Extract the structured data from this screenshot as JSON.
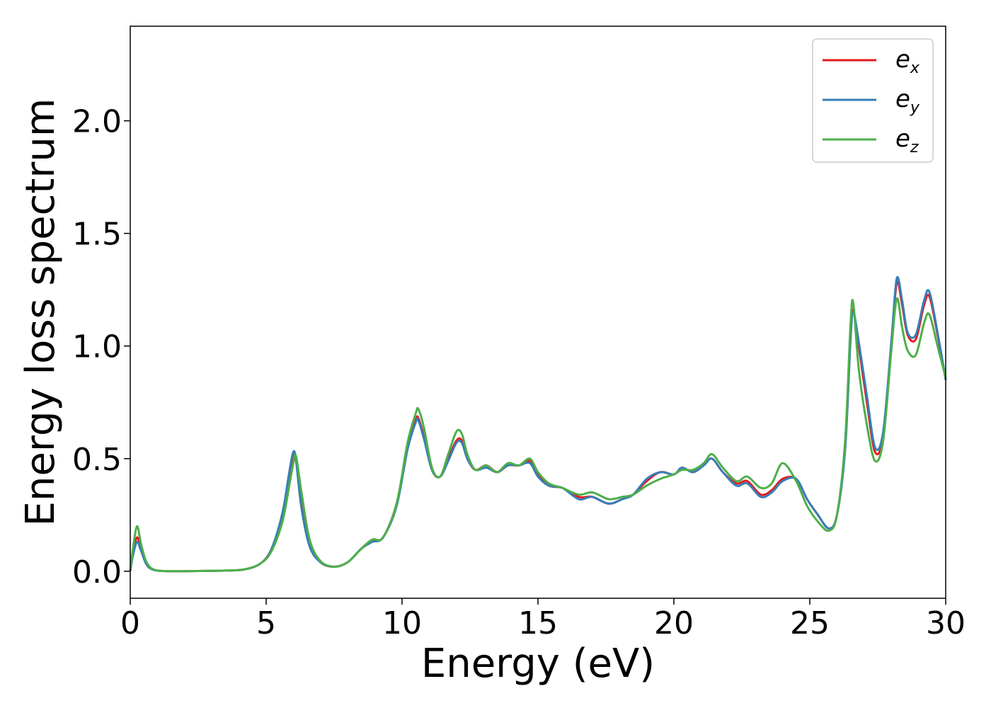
{
  "chart_data": {
    "type": "line",
    "title": "",
    "xlabel": "Energy (eV)",
    "ylabel": "Energy loss spectrum",
    "xlim": [
      0,
      30
    ],
    "ylim": [
      -0.12,
      2.42
    ],
    "xticks": [
      0,
      5,
      10,
      15,
      20,
      25,
      30
    ],
    "xtick_labels": [
      "0",
      "5",
      "10",
      "15",
      "20",
      "25",
      "30"
    ],
    "yticks": [
      0,
      0.5,
      1.0,
      1.5,
      2.0
    ],
    "ytick_labels": [
      "0.0",
      "0.5",
      "1.0",
      "1.5",
      "2.0"
    ],
    "grid": false,
    "legend_position": "top-right",
    "series": [
      {
        "name": "e_x",
        "legend_base": "e",
        "legend_sub": "x",
        "color": "#e41a1c",
        "x": [
          0,
          0.1,
          0.25,
          0.4,
          0.6,
          0.9,
          1.5,
          2.5,
          3.5,
          4.2,
          4.8,
          5.2,
          5.6,
          5.85,
          6.0,
          6.1,
          6.3,
          6.6,
          7.0,
          7.5,
          8.0,
          8.5,
          8.9,
          9.3,
          9.8,
          10.2,
          10.5,
          10.6,
          10.8,
          11.1,
          11.4,
          11.7,
          12.0,
          12.2,
          12.4,
          12.7,
          13.1,
          13.5,
          13.9,
          14.3,
          14.7,
          15.0,
          15.4,
          15.9,
          16.5,
          17.0,
          17.6,
          18.1,
          18.5,
          19.0,
          19.5,
          20.0,
          20.3,
          20.7,
          21.1,
          21.4,
          21.8,
          22.3,
          22.7,
          23.2,
          23.6,
          24.0,
          24.5,
          24.9,
          25.3,
          25.7,
          26.0,
          26.3,
          26.5,
          26.6,
          26.8,
          27.1,
          27.4,
          27.7,
          28.0,
          28.2,
          28.4,
          28.6,
          28.9,
          29.2,
          29.4,
          29.7,
          30.0
        ],
        "y": [
          0.0,
          0.08,
          0.15,
          0.1,
          0.03,
          0.005,
          0.0,
          0.001,
          0.003,
          0.008,
          0.035,
          0.1,
          0.25,
          0.42,
          0.52,
          0.5,
          0.3,
          0.12,
          0.04,
          0.02,
          0.04,
          0.1,
          0.14,
          0.15,
          0.3,
          0.55,
          0.67,
          0.68,
          0.6,
          0.45,
          0.42,
          0.5,
          0.58,
          0.58,
          0.5,
          0.45,
          0.47,
          0.44,
          0.47,
          0.47,
          0.49,
          0.43,
          0.38,
          0.37,
          0.33,
          0.33,
          0.3,
          0.32,
          0.34,
          0.4,
          0.44,
          0.43,
          0.46,
          0.44,
          0.47,
          0.5,
          0.44,
          0.39,
          0.4,
          0.34,
          0.36,
          0.41,
          0.41,
          0.32,
          0.25,
          0.19,
          0.25,
          0.55,
          1.05,
          1.16,
          1.0,
          0.75,
          0.53,
          0.6,
          1.0,
          1.28,
          1.18,
          1.05,
          1.03,
          1.18,
          1.22,
          1.05,
          0.85
        ]
      },
      {
        "name": "e_y",
        "legend_base": "e",
        "legend_sub": "y",
        "color": "#377eb8",
        "x": [
          0,
          0.1,
          0.25,
          0.4,
          0.6,
          0.9,
          1.5,
          2.5,
          3.5,
          4.2,
          4.8,
          5.2,
          5.6,
          5.85,
          6.0,
          6.1,
          6.3,
          6.6,
          7.0,
          7.5,
          8.0,
          8.5,
          8.9,
          9.3,
          9.8,
          10.2,
          10.5,
          10.6,
          10.8,
          11.1,
          11.4,
          11.7,
          12.0,
          12.2,
          12.4,
          12.7,
          13.1,
          13.5,
          13.9,
          14.3,
          14.7,
          15.0,
          15.4,
          15.9,
          16.5,
          17.0,
          17.6,
          18.1,
          18.5,
          19.0,
          19.5,
          20.0,
          20.3,
          20.7,
          21.1,
          21.4,
          21.8,
          22.3,
          22.7,
          23.2,
          23.6,
          24.0,
          24.5,
          24.9,
          25.3,
          25.7,
          26.0,
          26.3,
          26.5,
          26.6,
          26.8,
          27.1,
          27.4,
          27.7,
          28.0,
          28.2,
          28.4,
          28.6,
          28.9,
          29.2,
          29.4,
          29.7,
          30.0
        ],
        "y": [
          0.0,
          0.07,
          0.13,
          0.09,
          0.03,
          0.005,
          0.0,
          0.001,
          0.003,
          0.008,
          0.035,
          0.1,
          0.26,
          0.44,
          0.53,
          0.49,
          0.28,
          0.11,
          0.04,
          0.02,
          0.04,
          0.1,
          0.13,
          0.15,
          0.29,
          0.54,
          0.66,
          0.67,
          0.59,
          0.45,
          0.42,
          0.49,
          0.57,
          0.57,
          0.5,
          0.45,
          0.46,
          0.44,
          0.47,
          0.47,
          0.48,
          0.42,
          0.38,
          0.37,
          0.32,
          0.33,
          0.3,
          0.32,
          0.34,
          0.41,
          0.44,
          0.43,
          0.46,
          0.44,
          0.47,
          0.5,
          0.44,
          0.38,
          0.39,
          0.33,
          0.35,
          0.4,
          0.41,
          0.32,
          0.25,
          0.19,
          0.25,
          0.54,
          1.03,
          1.15,
          1.02,
          0.78,
          0.55,
          0.62,
          1.02,
          1.3,
          1.2,
          1.06,
          1.05,
          1.2,
          1.24,
          1.06,
          0.85
        ]
      },
      {
        "name": "e_z",
        "legend_base": "e",
        "legend_sub": "z",
        "color": "#4daf4a",
        "x": [
          0,
          0.1,
          0.25,
          0.4,
          0.6,
          0.9,
          1.5,
          2.5,
          3.5,
          4.2,
          4.8,
          5.2,
          5.6,
          5.85,
          6.0,
          6.1,
          6.3,
          6.6,
          7.0,
          7.5,
          8.0,
          8.5,
          8.9,
          9.3,
          9.8,
          10.2,
          10.5,
          10.6,
          10.8,
          11.1,
          11.4,
          11.7,
          12.0,
          12.2,
          12.4,
          12.7,
          13.1,
          13.5,
          13.9,
          14.3,
          14.7,
          15.0,
          15.4,
          15.9,
          16.5,
          17.0,
          17.6,
          18.1,
          18.5,
          19.0,
          19.5,
          20.0,
          20.3,
          20.7,
          21.1,
          21.4,
          21.8,
          22.3,
          22.7,
          23.2,
          23.6,
          24.0,
          24.5,
          24.9,
          25.3,
          25.7,
          26.0,
          26.3,
          26.5,
          26.6,
          26.8,
          27.1,
          27.4,
          27.7,
          28.0,
          28.2,
          28.4,
          28.6,
          28.9,
          29.2,
          29.4,
          29.7,
          30.0
        ],
        "y": [
          0.0,
          0.1,
          0.2,
          0.12,
          0.04,
          0.006,
          0.0,
          0.001,
          0.003,
          0.008,
          0.035,
          0.09,
          0.22,
          0.38,
          0.48,
          0.51,
          0.35,
          0.14,
          0.045,
          0.02,
          0.04,
          0.1,
          0.14,
          0.15,
          0.3,
          0.57,
          0.7,
          0.72,
          0.64,
          0.46,
          0.42,
          0.52,
          0.62,
          0.61,
          0.52,
          0.45,
          0.47,
          0.44,
          0.48,
          0.47,
          0.5,
          0.44,
          0.39,
          0.37,
          0.34,
          0.35,
          0.32,
          0.33,
          0.34,
          0.38,
          0.41,
          0.43,
          0.45,
          0.45,
          0.48,
          0.52,
          0.46,
          0.4,
          0.42,
          0.37,
          0.39,
          0.48,
          0.4,
          0.29,
          0.22,
          0.18,
          0.25,
          0.58,
          1.1,
          1.19,
          0.9,
          0.65,
          0.49,
          0.58,
          0.98,
          1.21,
          1.08,
          0.98,
          0.96,
          1.1,
          1.14,
          1.0,
          0.86
        ]
      }
    ]
  }
}
